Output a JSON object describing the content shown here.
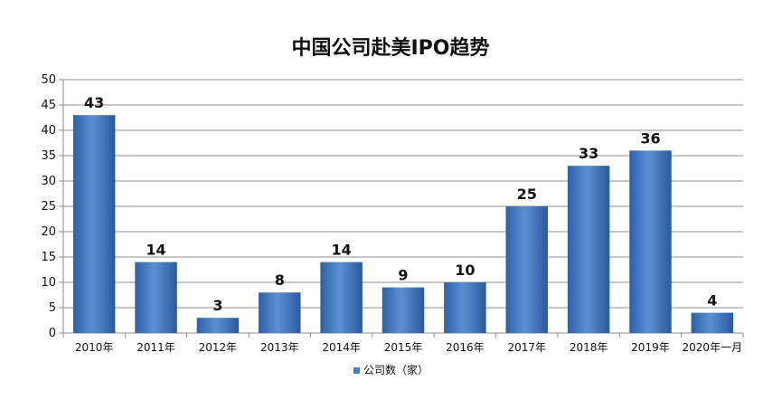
{
  "chart_data": {
    "type": "bar",
    "title": "中国公司赴美IPO趋势",
    "categories": [
      "2010年",
      "2011年",
      "2012年",
      "2013年",
      "2014年",
      "2015年",
      "2016年",
      "2017年",
      "2018年",
      "2019年",
      "2020年一月"
    ],
    "series": [
      {
        "name": "公司数（家）",
        "values": [
          43,
          14,
          3,
          8,
          14,
          9,
          10,
          25,
          33,
          36,
          4
        ],
        "color": "#4a7ec4"
      }
    ],
    "xlabel": "",
    "ylabel": "",
    "ylim": [
      0,
      50
    ],
    "yticks": [
      0,
      5,
      10,
      15,
      20,
      25,
      30,
      35,
      40,
      45,
      50
    ],
    "grid": true,
    "legend_position": "bottom",
    "data_labels": true
  }
}
